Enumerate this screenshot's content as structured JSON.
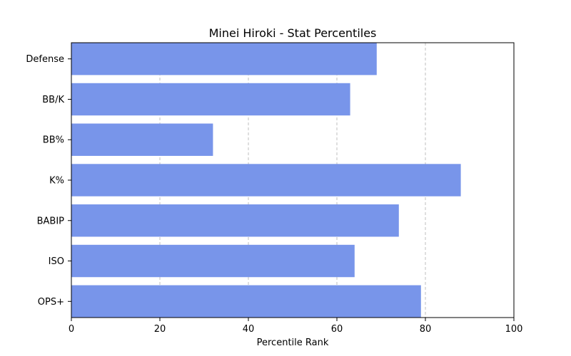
{
  "chart_data": {
    "type": "bar",
    "orientation": "horizontal",
    "title": "Minei Hiroki - Stat Percentiles",
    "xlabel": "Percentile Rank",
    "ylabel": "",
    "xlim": [
      0,
      100
    ],
    "xticks": [
      "0",
      "20",
      "40",
      "60",
      "80",
      "100"
    ],
    "categories": [
      "OPS+",
      "ISO",
      "BABIP",
      "K%",
      "BB%",
      "BB/K",
      "Defense"
    ],
    "values": [
      79,
      64,
      74,
      88,
      32,
      63,
      69
    ],
    "bar_color": "#7895ea",
    "grid": "x-dashed",
    "legend": "none"
  }
}
